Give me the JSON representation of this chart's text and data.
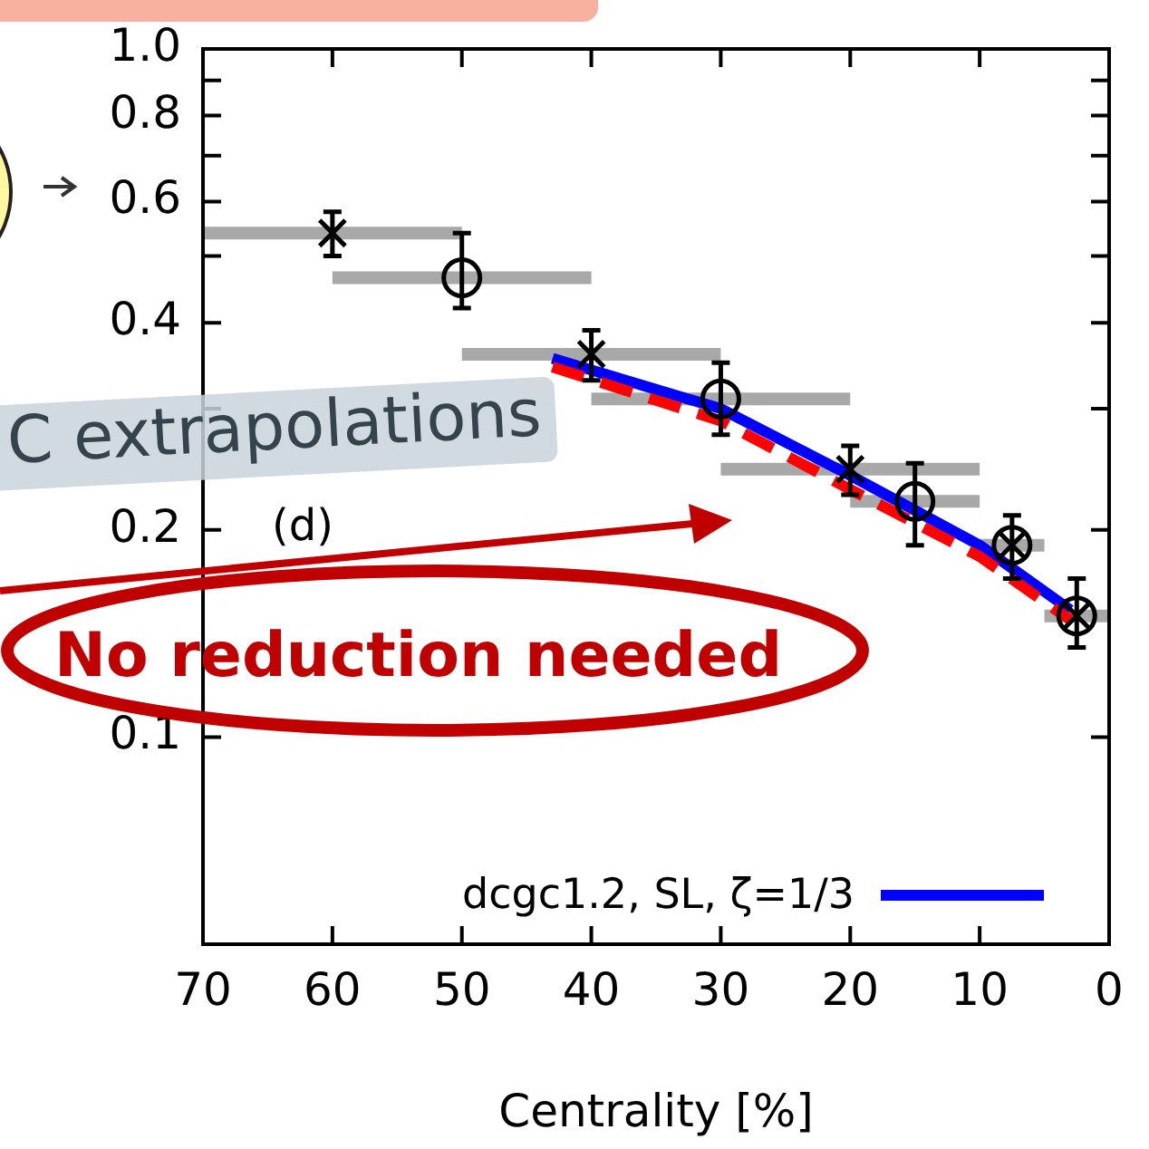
{
  "chart_data": {
    "type": "scatter",
    "xlabel": "Centrality [%]",
    "xlim": [
      70,
      0
    ],
    "xticks": [
      70,
      60,
      50,
      40,
      30,
      20,
      10,
      0
    ],
    "ylim": [
      0.05,
      1.0
    ],
    "yticks": [
      {
        "value": 0.1,
        "label": "0.1"
      },
      {
        "value": 0.2,
        "label": "0.2"
      },
      {
        "value": 0.3,
        "label": null
      },
      {
        "value": 0.4,
        "label": "0.4"
      },
      {
        "value": 0.5,
        "label": null
      },
      {
        "value": 0.6,
        "label": "0.6"
      },
      {
        "value": 0.7,
        "label": null
      },
      {
        "value": 0.8,
        "label": "0.8"
      },
      {
        "value": 0.9,
        "label": null
      },
      {
        "value": 1.0,
        "label": "1.0"
      }
    ],
    "log": "y",
    "grid": false,
    "legend": "bottom right",
    "series": [
      {
        "type": "scatter",
        "color": "#000000",
        "marker": "cross",
        "x": [
          60,
          40,
          20,
          7.5,
          2.5
        ],
        "values": [
          0.54,
          0.36,
          0.245,
          0.19,
          0.15
        ],
        "errors": [
          [
            0.5,
            0.58
          ],
          [
            0.33,
            0.39
          ],
          [
            0.225,
            0.265
          ],
          [
            0.17,
            0.21
          ],
          [
            0.135,
            0.17
          ]
        ],
        "xerrors": [
          [
            50,
            70
          ],
          [
            30,
            50
          ],
          [
            10,
            30
          ],
          [
            5,
            10
          ],
          [
            0,
            5
          ]
        ]
      },
      {
        "type": "scatter",
        "color": "#000000",
        "marker": "circle",
        "x": [
          50,
          30,
          15,
          7.5,
          2.5
        ],
        "values": [
          0.465,
          0.31,
          0.22,
          0.19,
          0.15
        ],
        "errors": [
          [
            0.42,
            0.54
          ],
          [
            0.275,
            0.35
          ],
          [
            0.19,
            0.25
          ],
          null,
          null
        ],
        "xerrors": [
          [
            40,
            60
          ],
          [
            20,
            40
          ],
          [
            10,
            20
          ],
          null,
          null
        ]
      },
      {
        "type": "line",
        "color": "#ff0000",
        "line_style": "dashed",
        "marker": "none",
        "x": [
          43,
          30,
          20,
          10,
          3
        ],
        "values": [
          0.345,
          0.288,
          0.229,
          0.183,
          0.148
        ]
      },
      {
        "type": "line",
        "name": "dcgc1.2, SL, ζ=1/3",
        "color": "#0000ff",
        "line_style": "solid",
        "marker": "none",
        "x": [
          43,
          30,
          20,
          10,
          3
        ],
        "values": [
          0.355,
          0.3,
          0.24,
          0.19,
          0.153
        ]
      }
    ],
    "annotations": [
      "C extrapolations",
      "(d)",
      "No reduction needed"
    ]
  }
}
